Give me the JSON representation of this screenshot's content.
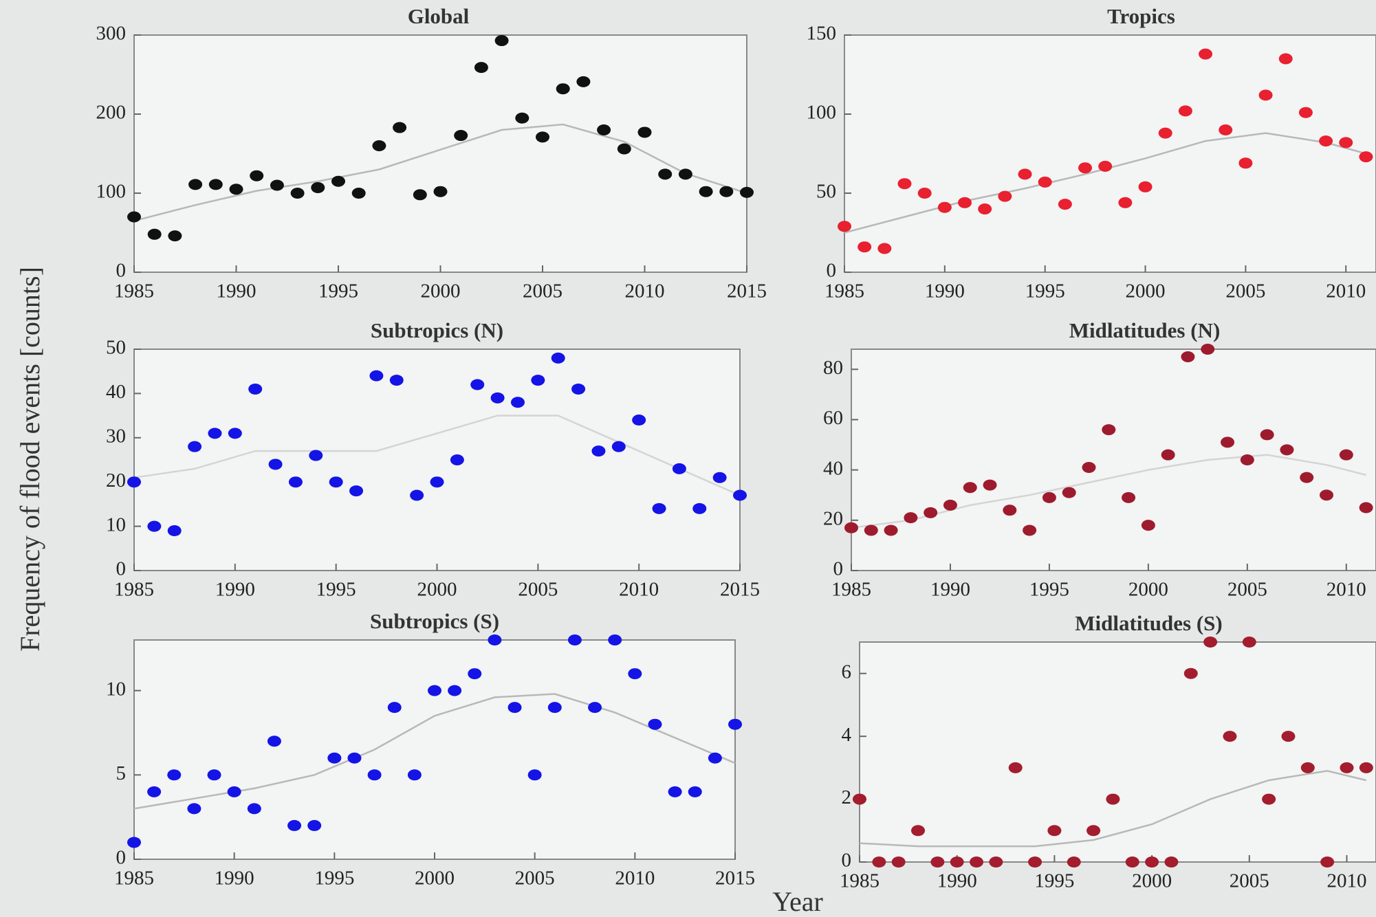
{
  "ylabel": "Frequency of flood events [counts]",
  "xlabel": "Year",
  "chart_data": [
    {
      "type": "scatter",
      "title": "Global",
      "color": "#111111",
      "trend_color": "#b8b8b8",
      "x": [
        1985,
        1986,
        1987,
        1988,
        1989,
        1990,
        1991,
        1992,
        1993,
        1994,
        1995,
        1996,
        1997,
        1998,
        1999,
        2000,
        2001,
        2002,
        2003,
        2004,
        2005,
        2006,
        2007,
        2008,
        2009,
        2010,
        2011,
        2012,
        2013,
        2014,
        2015
      ],
      "values": [
        70,
        48,
        46,
        111,
        111,
        105,
        122,
        110,
        100,
        107,
        115,
        100,
        160,
        183,
        98,
        102,
        173,
        259,
        293,
        195,
        171,
        232,
        241,
        180,
        156,
        177,
        124,
        124,
        102,
        102,
        101
      ],
      "trend_x": [
        1985,
        1988,
        1991,
        1994,
        1997,
        2000,
        2003,
        2006,
        2009,
        2012,
        2015
      ],
      "trend": [
        65,
        85,
        103,
        115,
        130,
        155,
        180,
        187,
        165,
        125,
        100
      ],
      "xlim": [
        1985,
        2015
      ],
      "ylim": [
        0,
        300
      ],
      "xticks": [
        1985,
        1990,
        1995,
        2000,
        2005,
        2010,
        2015
      ],
      "yticks": [
        0,
        100,
        200,
        300
      ]
    },
    {
      "type": "scatter",
      "title": "Tropics",
      "color": "#e8202f",
      "trend_color": "#b8b8b8",
      "x": [
        1985,
        1986,
        1987,
        1988,
        1989,
        1990,
        1991,
        1992,
        1993,
        1994,
        1995,
        1996,
        1997,
        1998,
        1999,
        2000,
        2001,
        2002,
        2003,
        2004,
        2005,
        2006,
        2007,
        2008,
        2009,
        2010,
        2011
      ],
      "values": [
        29,
        16,
        15,
        56,
        50,
        41,
        44,
        40,
        48,
        62,
        57,
        43,
        66,
        67,
        44,
        54,
        88,
        102,
        138,
        90,
        69,
        112,
        135,
        101,
        83,
        82,
        73
      ],
      "trend_x": [
        1985,
        1988,
        1991,
        1994,
        1997,
        2000,
        2003,
        2006,
        2009,
        2011
      ],
      "trend": [
        25,
        35,
        45,
        53,
        62,
        72,
        83,
        88,
        82,
        75
      ],
      "xlim": [
        1985,
        2011.5
      ],
      "ylim": [
        0,
        150
      ],
      "xticks": [
        1985,
        1990,
        1995,
        2000,
        2005,
        2010
      ],
      "yticks": [
        0,
        50,
        100,
        150
      ]
    },
    {
      "type": "scatter",
      "title": "Subtropics (N)",
      "color": "#1414e6",
      "trend_color": "#d4d4d4",
      "x": [
        1985,
        1986,
        1987,
        1988,
        1989,
        1990,
        1991,
        1992,
        1993,
        1994,
        1995,
        1996,
        1997,
        1998,
        1999,
        2000,
        2001,
        2002,
        2003,
        2004,
        2005,
        2006,
        2007,
        2008,
        2009,
        2010,
        2011,
        2012,
        2013,
        2014,
        2015
      ],
      "values": [
        20,
        10,
        9,
        28,
        31,
        31,
        41,
        24,
        20,
        26,
        20,
        18,
        44,
        43,
        17,
        20,
        25,
        42,
        39,
        38,
        43,
        48,
        41,
        27,
        28,
        34,
        14,
        23,
        14,
        21,
        17
      ],
      "trend_x": [
        1985,
        1988,
        1991,
        1994,
        1997,
        2000,
        2003,
        2006,
        2009,
        2012,
        2015
      ],
      "trend": [
        21,
        23,
        27,
        27,
        27,
        31,
        35,
        35,
        29,
        23,
        17
      ],
      "xlim": [
        1985,
        2015
      ],
      "ylim": [
        0,
        50
      ],
      "xticks": [
        1985,
        1990,
        1995,
        2000,
        2005,
        2010,
        2015
      ],
      "yticks": [
        0,
        10,
        20,
        30,
        40,
        50
      ]
    },
    {
      "type": "scatter",
      "title": "Midlatitudes (N)",
      "color": "#9e1b2e",
      "trend_color": "#d4d4d4",
      "x": [
        1985,
        1986,
        1987,
        1988,
        1989,
        1990,
        1991,
        1992,
        1993,
        1994,
        1995,
        1996,
        1997,
        1998,
        1999,
        2000,
        2001,
        2002,
        2003,
        2004,
        2005,
        2006,
        2007,
        2008,
        2009,
        2010,
        2011
      ],
      "values": [
        17,
        16,
        16,
        21,
        23,
        26,
        33,
        34,
        24,
        16,
        29,
        31,
        41,
        56,
        29,
        18,
        46,
        85,
        88,
        51,
        44,
        54,
        48,
        37,
        30,
        46,
        25
      ],
      "trend_x": [
        1985,
        1988,
        1991,
        1994,
        1997,
        2000,
        2003,
        2006,
        2009,
        2011
      ],
      "trend": [
        17,
        20,
        26,
        30,
        35,
        40,
        44,
        46,
        42,
        38
      ],
      "xlim": [
        1985,
        2011.5
      ],
      "ylim": [
        0,
        88
      ],
      "xticks": [
        1985,
        1990,
        1995,
        2000,
        2005,
        2010
      ],
      "yticks": [
        0,
        20,
        40,
        60,
        80
      ]
    },
    {
      "type": "scatter",
      "title": "Subtropics (S)",
      "color": "#1414e6",
      "trend_color": "#b8b8b8",
      "x": [
        1985,
        1986,
        1987,
        1988,
        1989,
        1990,
        1991,
        1992,
        1993,
        1994,
        1995,
        1996,
        1997,
        1998,
        1999,
        2000,
        2001,
        2002,
        2003,
        2004,
        2005,
        2006,
        2007,
        2008,
        2009,
        2010,
        2011,
        2012,
        2013,
        2014,
        2015
      ],
      "values": [
        1,
        4,
        5,
        3,
        5,
        4,
        3,
        7,
        2,
        2,
        6,
        6,
        5,
        9,
        5,
        10,
        10,
        11,
        13,
        9,
        5,
        9,
        13,
        9,
        13,
        11,
        8,
        4,
        4,
        6,
        8
      ],
      "trend_x": [
        1985,
        1988,
        1991,
        1994,
        1997,
        2000,
        2003,
        2006,
        2009,
        2012,
        2015
      ],
      "trend": [
        3,
        3.6,
        4.2,
        5,
        6.5,
        8.5,
        9.6,
        9.8,
        8.7,
        7.2,
        5.7
      ],
      "xlim": [
        1985,
        2015
      ],
      "ylim": [
        0,
        13
      ],
      "xticks": [
        1985,
        1990,
        1995,
        2000,
        2005,
        2010,
        2015
      ],
      "yticks": [
        0,
        5,
        10
      ]
    },
    {
      "type": "scatter",
      "title": "Midlatitudes (S)",
      "color": "#a31d2e",
      "trend_color": "#b8b8b8",
      "x": [
        1985,
        1986,
        1987,
        1988,
        1989,
        1990,
        1991,
        1992,
        1993,
        1994,
        1995,
        1996,
        1997,
        1998,
        1999,
        2000,
        2001,
        2002,
        2003,
        2004,
        2005,
        2006,
        2007,
        2008,
        2009,
        2010,
        2011
      ],
      "values": [
        2,
        0,
        0,
        1,
        0,
        0,
        0,
        0,
        3,
        0,
        1,
        0,
        1,
        2,
        0,
        0,
        0,
        6,
        7,
        4,
        7,
        2,
        4,
        3,
        0,
        3,
        3
      ],
      "trend_x": [
        1985,
        1988,
        1991,
        1994,
        1997,
        2000,
        2003,
        2006,
        2009,
        2011
      ],
      "trend": [
        0.6,
        0.5,
        0.5,
        0.5,
        0.7,
        1.2,
        2,
        2.6,
        2.9,
        2.6
      ],
      "xlim": [
        1985,
        2011.5
      ],
      "ylim": [
        0,
        7
      ],
      "xticks": [
        1985,
        1990,
        1995,
        2000,
        2005,
        2010
      ],
      "yticks": [
        0,
        2,
        4,
        6
      ]
    }
  ]
}
